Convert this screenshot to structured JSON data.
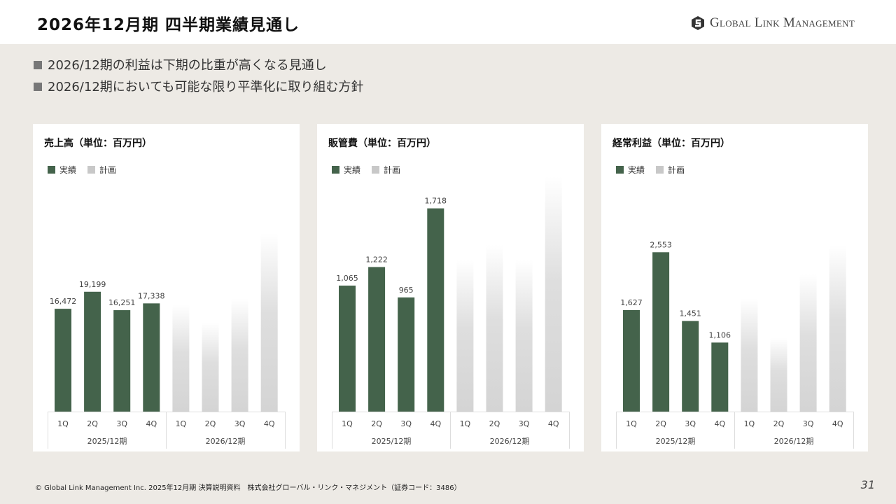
{
  "header": {
    "title": "2026年12月期 四半期業績見通し",
    "logo_text": "Global Link Management"
  },
  "bullets": [
    "2026/12期の利益は下期の比重が高くなる見通し",
    "2026/12期においても可能な限り平準化に取り組む方針"
  ],
  "colors": {
    "actual": "#44634b",
    "plan": "#d6d6d6",
    "background": "#edeae5"
  },
  "legend": {
    "actual": "実績",
    "plan": "計画"
  },
  "chart_data": [
    {
      "type": "bar",
      "title": "売上高（単位：百万円）",
      "categories": [
        "1Q",
        "2Q",
        "3Q",
        "4Q",
        "1Q",
        "2Q",
        "3Q",
        "4Q"
      ],
      "groups": [
        "2025/12期",
        "2026/12期"
      ],
      "ylim": [
        0,
        37900
      ],
      "series": [
        {
          "name": "実績",
          "values": [
            16472,
            19199,
            16251,
            17338,
            null,
            null,
            null,
            null
          ],
          "labels": [
            "16,472",
            "19,199",
            "16,251",
            "17,338"
          ]
        },
        {
          "name": "計画",
          "values": [
            null,
            null,
            null,
            null,
            17100,
            14200,
            18100,
            28600
          ]
        }
      ]
    },
    {
      "type": "bar",
      "title": "販管費（単位：百万円）",
      "categories": [
        "1Q",
        "2Q",
        "3Q",
        "4Q",
        "1Q",
        "2Q",
        "3Q",
        "4Q"
      ],
      "groups": [
        "2025/12期",
        "2026/12期"
      ],
      "ylim": [
        0,
        2000
      ],
      "series": [
        {
          "name": "実績",
          "values": [
            1065,
            1222,
            965,
            1718,
            null,
            null,
            null,
            null
          ],
          "labels": [
            "1,065",
            "1,222",
            "965",
            "1,718"
          ]
        },
        {
          "name": "計画",
          "values": [
            null,
            null,
            null,
            null,
            1280,
            1410,
            1280,
            1990
          ]
        }
      ]
    },
    {
      "type": "bar",
      "title": "経常利益（単位：百万円）",
      "categories": [
        "1Q",
        "2Q",
        "3Q",
        "4Q",
        "1Q",
        "2Q",
        "3Q",
        "4Q"
      ],
      "groups": [
        "2025/12期",
        "2026/12期"
      ],
      "ylim": [
        0,
        3790
      ],
      "series": [
        {
          "name": "実績",
          "values": [
            1627,
            2553,
            1451,
            1106,
            null,
            null,
            null,
            null
          ],
          "labels": [
            "1,627",
            "2,553",
            "1,451",
            "1,106"
          ]
        },
        {
          "name": "計画",
          "values": [
            null,
            null,
            null,
            null,
            1810,
            1180,
            2200,
            2660
          ]
        }
      ]
    }
  ],
  "footer": {
    "copyright": "© Global Link Management Inc. 2025年12月期 決算説明資料　株式会社グローバル・リンク・マネジメント（証券コード：3486）",
    "page": "31"
  }
}
